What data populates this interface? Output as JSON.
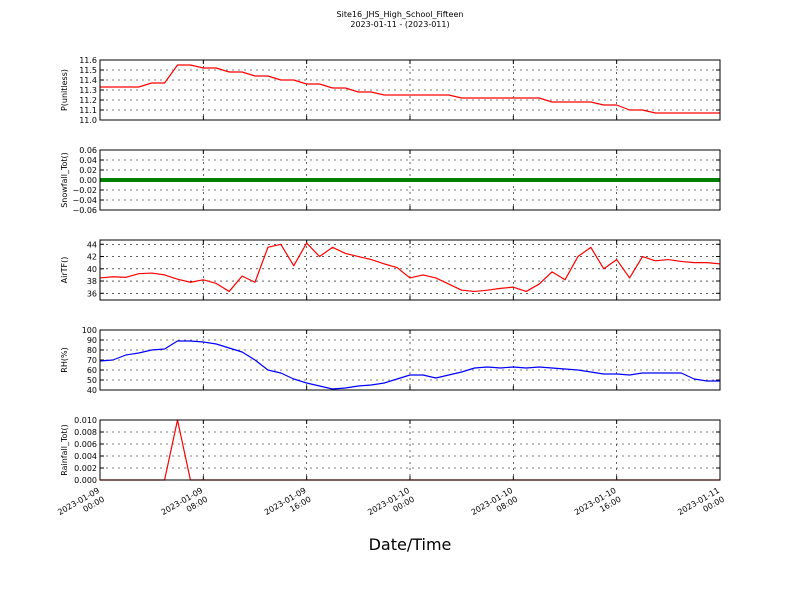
{
  "chart_data": [
    {
      "type": "line",
      "title": "Site16_JHS_High_School_Fifteen",
      "subtitle": "2023-01-11 - (2023-011)",
      "ylabel": "P(unitless)",
      "color": "#ff0000",
      "grid": true,
      "x": [
        "2023-01-09 00:00",
        "2023-01-09 01:00",
        "2023-01-09 02:00",
        "2023-01-09 03:00",
        "2023-01-09 04:00",
        "2023-01-09 05:00",
        "2023-01-09 06:00",
        "2023-01-09 07:00",
        "2023-01-09 08:00",
        "2023-01-09 09:00",
        "2023-01-09 10:00",
        "2023-01-09 11:00",
        "2023-01-09 12:00",
        "2023-01-09 13:00",
        "2023-01-09 14:00",
        "2023-01-09 15:00",
        "2023-01-09 16:00",
        "2023-01-09 17:00",
        "2023-01-09 18:00",
        "2023-01-09 19:00",
        "2023-01-09 20:00",
        "2023-01-09 21:00",
        "2023-01-09 22:00",
        "2023-01-09 23:00",
        "2023-01-10 00:00",
        "2023-01-10 01:00",
        "2023-01-10 02:00",
        "2023-01-10 03:00",
        "2023-01-10 04:00",
        "2023-01-10 05:00",
        "2023-01-10 06:00",
        "2023-01-10 07:00",
        "2023-01-10 08:00",
        "2023-01-10 09:00",
        "2023-01-10 10:00",
        "2023-01-10 11:00",
        "2023-01-10 12:00",
        "2023-01-10 13:00",
        "2023-01-10 14:00",
        "2023-01-10 15:00",
        "2023-01-10 16:00",
        "2023-01-10 17:00",
        "2023-01-10 18:00",
        "2023-01-10 19:00",
        "2023-01-10 20:00",
        "2023-01-10 21:00",
        "2023-01-10 22:00",
        "2023-01-10 23:00",
        "2023-01-11 00:00"
      ],
      "values": [
        11.33,
        11.33,
        11.33,
        11.33,
        11.37,
        11.37,
        11.55,
        11.55,
        11.52,
        11.52,
        11.48,
        11.48,
        11.44,
        11.44,
        11.4,
        11.4,
        11.36,
        11.36,
        11.32,
        11.32,
        11.28,
        11.28,
        11.25,
        11.25,
        11.25,
        11.25,
        11.25,
        11.25,
        11.22,
        11.22,
        11.22,
        11.22,
        11.22,
        11.22,
        11.22,
        11.18,
        11.18,
        11.18,
        11.18,
        11.15,
        11.15,
        11.1,
        11.1,
        11.07,
        11.07,
        11.07,
        11.07,
        11.07,
        11.07
      ],
      "ylim": [
        11.0,
        11.6
      ],
      "yticks": [
        {
          "value": 11.0,
          "label": "11.0"
        },
        11.1,
        11.2,
        11.3,
        11.4,
        11.5,
        11.6
      ]
    },
    {
      "type": "line",
      "ylabel": "Snowfall_Tot()",
      "color": "#008000",
      "grid": true,
      "x": [
        "2023-01-09 00:00",
        "2023-01-09 01:00",
        "2023-01-09 02:00",
        "2023-01-09 03:00",
        "2023-01-09 04:00",
        "2023-01-09 05:00",
        "2023-01-09 06:00",
        "2023-01-09 07:00",
        "2023-01-09 08:00",
        "2023-01-09 09:00",
        "2023-01-09 10:00",
        "2023-01-09 11:00",
        "2023-01-09 12:00",
        "2023-01-09 13:00",
        "2023-01-09 14:00",
        "2023-01-09 15:00",
        "2023-01-09 16:00",
        "2023-01-09 17:00",
        "2023-01-09 18:00",
        "2023-01-09 19:00",
        "2023-01-09 20:00",
        "2023-01-09 21:00",
        "2023-01-09 22:00",
        "2023-01-09 23:00",
        "2023-01-10 00:00",
        "2023-01-10 01:00",
        "2023-01-10 02:00",
        "2023-01-10 03:00",
        "2023-01-10 04:00",
        "2023-01-10 05:00",
        "2023-01-10 06:00",
        "2023-01-10 07:00",
        "2023-01-10 08:00",
        "2023-01-10 09:00",
        "2023-01-10 10:00",
        "2023-01-10 11:00",
        "2023-01-10 12:00",
        "2023-01-10 13:00",
        "2023-01-10 14:00",
        "2023-01-10 15:00",
        "2023-01-10 16:00",
        "2023-01-10 17:00",
        "2023-01-10 18:00",
        "2023-01-10 19:00",
        "2023-01-10 20:00",
        "2023-01-10 21:00",
        "2023-01-10 22:00",
        "2023-01-10 23:00",
        "2023-01-11 00:00"
      ],
      "values": [
        0,
        0,
        0,
        0,
        0,
        0,
        0,
        0,
        0,
        0,
        0,
        0,
        0,
        0,
        0,
        0,
        0,
        0,
        0,
        0,
        0,
        0,
        0,
        0,
        0,
        0,
        0,
        0,
        0,
        0,
        0,
        0,
        0,
        0,
        0,
        0,
        0,
        0,
        0,
        0,
        0,
        0,
        0,
        0,
        0,
        0,
        0,
        0,
        0
      ],
      "ylim": [
        -0.06,
        0.06
      ],
      "yticks": [
        {
          "value": -0.06,
          "label": "−0.06"
        },
        {
          "value": -0.04,
          "label": "−0.04"
        },
        {
          "value": -0.02,
          "label": "−0.02"
        },
        {
          "value": 0,
          "label": "0.00"
        },
        0.02,
        0.04,
        0.06
      ]
    },
    {
      "type": "line",
      "ylabel": "AirTF()",
      "color": "#ff0000",
      "grid": true,
      "x": [
        "2023-01-09 00:00",
        "2023-01-09 01:00",
        "2023-01-09 02:00",
        "2023-01-09 03:00",
        "2023-01-09 04:00",
        "2023-01-09 05:00",
        "2023-01-09 06:00",
        "2023-01-09 07:00",
        "2023-01-09 08:00",
        "2023-01-09 09:00",
        "2023-01-09 10:00",
        "2023-01-09 11:00",
        "2023-01-09 12:00",
        "2023-01-09 13:00",
        "2023-01-09 14:00",
        "2023-01-09 15:00",
        "2023-01-09 16:00",
        "2023-01-09 17:00",
        "2023-01-09 18:00",
        "2023-01-09 19:00",
        "2023-01-09 20:00",
        "2023-01-09 21:00",
        "2023-01-09 22:00",
        "2023-01-09 23:00",
        "2023-01-10 00:00",
        "2023-01-10 01:00",
        "2023-01-10 02:00",
        "2023-01-10 03:00",
        "2023-01-10 04:00",
        "2023-01-10 05:00",
        "2023-01-10 06:00",
        "2023-01-10 07:00",
        "2023-01-10 08:00",
        "2023-01-10 09:00",
        "2023-01-10 10:00",
        "2023-01-10 11:00",
        "2023-01-10 12:00",
        "2023-01-10 13:00",
        "2023-01-10 14:00",
        "2023-01-10 15:00",
        "2023-01-10 16:00",
        "2023-01-10 17:00",
        "2023-01-10 18:00",
        "2023-01-10 19:00",
        "2023-01-10 20:00",
        "2023-01-10 21:00",
        "2023-01-10 22:00",
        "2023-01-10 23:00",
        "2023-01-11 00:00"
      ],
      "values": [
        38.5,
        38.7,
        38.6,
        39.2,
        39.3,
        39.0,
        38.3,
        37.8,
        38.2,
        37.6,
        36.3,
        38.8,
        37.8,
        43.5,
        44,
        40.5,
        44.2,
        42,
        43.5,
        42.5,
        42,
        41.5,
        40.8,
        40.2,
        38.5,
        39,
        38.5,
        37.5,
        36.5,
        36.3,
        36.5,
        36.8,
        37,
        36.3,
        37.5,
        39.5,
        38.2,
        42,
        43.5,
        40,
        41.5,
        38.5,
        42,
        41.3,
        41.5,
        41.2,
        41,
        41,
        40.8
      ],
      "ylim": [
        34.9,
        44.7
      ],
      "yticks": [
        36,
        38,
        40,
        42,
        44
      ]
    },
    {
      "type": "line",
      "ylabel": "RH(%)",
      "color": "#0000ff",
      "grid": true,
      "x": [
        "2023-01-09 00:00",
        "2023-01-09 01:00",
        "2023-01-09 02:00",
        "2023-01-09 03:00",
        "2023-01-09 04:00",
        "2023-01-09 05:00",
        "2023-01-09 06:00",
        "2023-01-09 07:00",
        "2023-01-09 08:00",
        "2023-01-09 09:00",
        "2023-01-09 10:00",
        "2023-01-09 11:00",
        "2023-01-09 12:00",
        "2023-01-09 13:00",
        "2023-01-09 14:00",
        "2023-01-09 15:00",
        "2023-01-09 16:00",
        "2023-01-09 17:00",
        "2023-01-09 18:00",
        "2023-01-09 19:00",
        "2023-01-09 20:00",
        "2023-01-09 21:00",
        "2023-01-09 22:00",
        "2023-01-09 23:00",
        "2023-01-10 00:00",
        "2023-01-10 01:00",
        "2023-01-10 02:00",
        "2023-01-10 03:00",
        "2023-01-10 04:00",
        "2023-01-10 05:00",
        "2023-01-10 06:00",
        "2023-01-10 07:00",
        "2023-01-10 08:00",
        "2023-01-10 09:00",
        "2023-01-10 10:00",
        "2023-01-10 11:00",
        "2023-01-10 12:00",
        "2023-01-10 13:00",
        "2023-01-10 14:00",
        "2023-01-10 15:00",
        "2023-01-10 16:00",
        "2023-01-10 17:00",
        "2023-01-10 18:00",
        "2023-01-10 19:00",
        "2023-01-10 20:00",
        "2023-01-10 21:00",
        "2023-01-10 22:00",
        "2023-01-10 23:00",
        "2023-01-11 00:00"
      ],
      "values": [
        69,
        70,
        75,
        77,
        80,
        81,
        89,
        89,
        88,
        86,
        82,
        78,
        70,
        60,
        57,
        51,
        47,
        44,
        41,
        42,
        44,
        45,
        47,
        51,
        55,
        55,
        52,
        55,
        58,
        62,
        63,
        62,
        63,
        62,
        63,
        62,
        61,
        60,
        58,
        56,
        56,
        55,
        57,
        57,
        57,
        57,
        51,
        49,
        49
      ],
      "ylim": [
        40,
        100
      ],
      "yticks": [
        40,
        50,
        60,
        70,
        80,
        90,
        100
      ]
    },
    {
      "type": "line",
      "ylabel": "Rainfall_Tot()",
      "xlabel": "Date/Time",
      "color": "#ff0000",
      "grid": true,
      "x": [
        "2023-01-09 00:00",
        "2023-01-09 01:00",
        "2023-01-09 02:00",
        "2023-01-09 03:00",
        "2023-01-09 04:00",
        "2023-01-09 05:00",
        "2023-01-09 06:00",
        "2023-01-09 07:00",
        "2023-01-09 08:00",
        "2023-01-09 09:00",
        "2023-01-09 10:00",
        "2023-01-09 11:00",
        "2023-01-09 12:00",
        "2023-01-09 13:00",
        "2023-01-09 14:00",
        "2023-01-09 15:00",
        "2023-01-09 16:00",
        "2023-01-09 17:00",
        "2023-01-09 18:00",
        "2023-01-09 19:00",
        "2023-01-09 20:00",
        "2023-01-09 21:00",
        "2023-01-09 22:00",
        "2023-01-09 23:00",
        "2023-01-10 00:00",
        "2023-01-10 01:00",
        "2023-01-10 02:00",
        "2023-01-10 03:00",
        "2023-01-10 04:00",
        "2023-01-10 05:00",
        "2023-01-10 06:00",
        "2023-01-10 07:00",
        "2023-01-10 08:00",
        "2023-01-10 09:00",
        "2023-01-10 10:00",
        "2023-01-10 11:00",
        "2023-01-10 12:00",
        "2023-01-10 13:00",
        "2023-01-10 14:00",
        "2023-01-10 15:00",
        "2023-01-10 16:00",
        "2023-01-10 17:00",
        "2023-01-10 18:00",
        "2023-01-10 19:00",
        "2023-01-10 20:00",
        "2023-01-10 21:00",
        "2023-01-10 22:00",
        "2023-01-10 23:00",
        "2023-01-11 00:00"
      ],
      "values": [
        0,
        0,
        0,
        0,
        0,
        0,
        0.01,
        0,
        0,
        0,
        0,
        0,
        0,
        0,
        0,
        0,
        0,
        0,
        0,
        0,
        0,
        0,
        0,
        0,
        0,
        0,
        0,
        0,
        0,
        0,
        0,
        0,
        0,
        0,
        0,
        0,
        0,
        0,
        0,
        0,
        0,
        0,
        0,
        0,
        0,
        0,
        0,
        0,
        0
      ],
      "ylim": [
        0,
        0.01
      ],
      "yticks": [
        {
          "value": 0,
          "label": "0.000"
        },
        {
          "value": 0.002,
          "label": "0.002"
        },
        {
          "value": 0.004,
          "label": "0.004"
        },
        {
          "value": 0.006,
          "label": "0.006"
        },
        {
          "value": 0.008,
          "label": "0.008"
        },
        {
          "value": 0.01,
          "label": "0.010"
        }
      ],
      "xlim": [
        "2023-01-09 00:00",
        "2023-01-11 00:00"
      ],
      "xticks": [
        "2023-01-09 00:00",
        "2023-01-09 08:00",
        "2023-01-09 16:00",
        "2023-01-10 00:00",
        "2023-01-10 08:00",
        "2023-01-10 16:00",
        "2023-01-11 00:00"
      ]
    }
  ]
}
